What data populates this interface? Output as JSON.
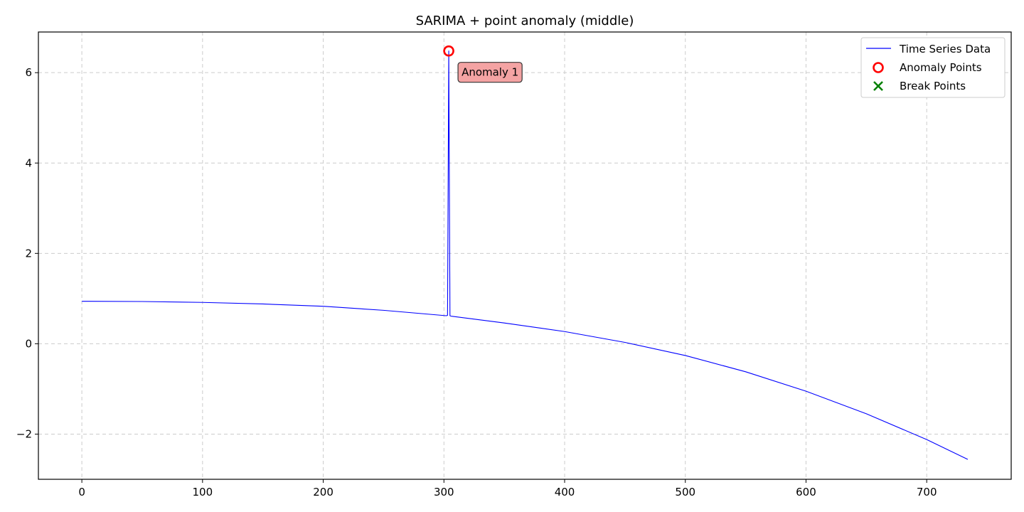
{
  "chart_data": {
    "type": "line",
    "title": "SARIMA + point anomaly (middle)",
    "xlabel": "",
    "ylabel": "",
    "xlim": [
      -36,
      770
    ],
    "ylim": [
      -3.0,
      6.9
    ],
    "x_ticks": [
      0,
      100,
      200,
      300,
      400,
      500,
      600,
      700
    ],
    "y_ticks": [
      -2,
      0,
      2,
      4,
      6
    ],
    "y_tick_labels": [
      "−2",
      "0",
      "2",
      "4",
      "6"
    ],
    "grid": true,
    "legend_position": "top-right",
    "series": [
      {
        "name": "Time Series Data",
        "color": "#0000ff",
        "points": [
          [
            0,
            0.94
          ],
          [
            50,
            0.935
          ],
          [
            100,
            0.915
          ],
          [
            150,
            0.88
          ],
          [
            200,
            0.83
          ],
          [
            250,
            0.74
          ],
          [
            302,
            0.62
          ],
          [
            303,
            0.63
          ],
          [
            304,
            6.48
          ],
          [
            305,
            0.62
          ],
          [
            306,
            0.61
          ],
          [
            350,
            0.46
          ],
          [
            400,
            0.27
          ],
          [
            450,
            0.03
          ],
          [
            500,
            -0.26
          ],
          [
            550,
            -0.62
          ],
          [
            600,
            -1.05
          ],
          [
            650,
            -1.55
          ],
          [
            700,
            -2.12
          ],
          [
            734,
            -2.56
          ]
        ]
      }
    ],
    "anomaly_points": {
      "name": "Anomaly Points",
      "color": "#ff0000",
      "points": [
        [
          304,
          6.48
        ]
      ]
    },
    "break_points": {
      "name": "Break Points",
      "color": "#008000",
      "points": []
    },
    "annotations": [
      {
        "text": "Anomaly 1",
        "x": 304,
        "y": 6.48,
        "box_color": "#f4a3a3"
      }
    ]
  }
}
